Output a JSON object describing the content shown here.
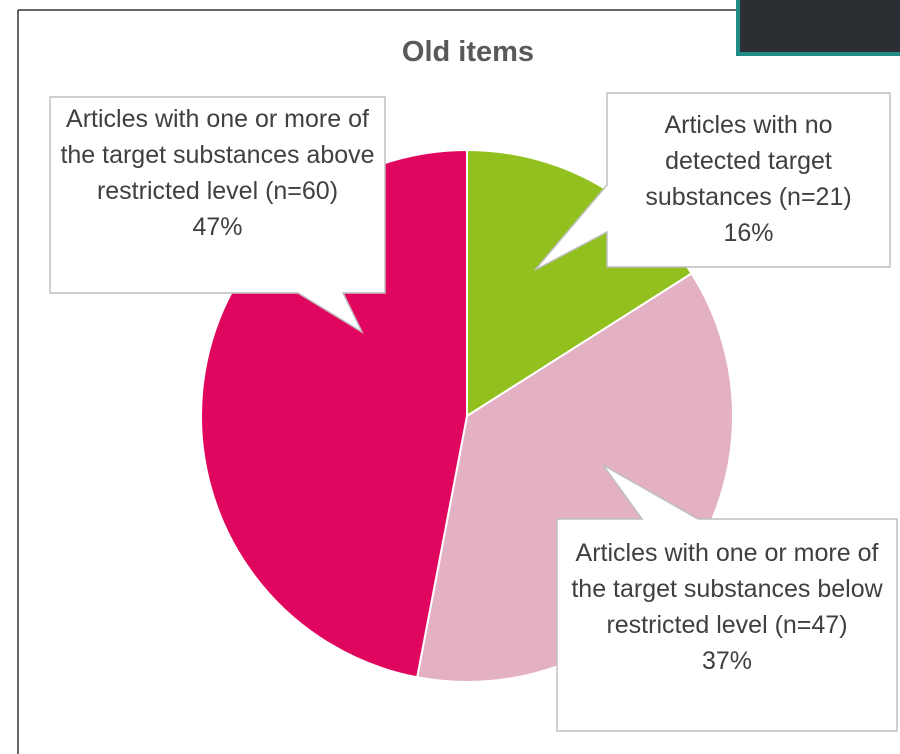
{
  "chart_data": {
    "type": "pie",
    "title": "Old items",
    "categories": [
      "Articles with no detected target substances (n=21)",
      "Articles with one or more of the target substances below restricted level (n=47)",
      "Articles with one or more of the target substances above restricted level (n=60)"
    ],
    "values": [
      16,
      37,
      47
    ],
    "value_labels": [
      "16%",
      "37%",
      "47%"
    ],
    "colors": [
      "#92c01f",
      "#e3b0c4",
      "#e0065f"
    ]
  }
}
